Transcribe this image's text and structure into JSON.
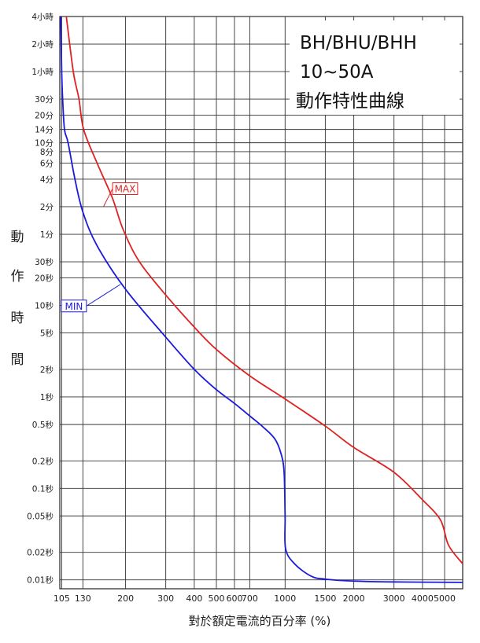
{
  "chart_data": {
    "type": "line",
    "title_lines": [
      "BH/BHU/BHH",
      "10~50A",
      "動作特性曲線"
    ],
    "xlabel": "對於額定電流的百分率 (%)",
    "ylabel_chars": [
      "動",
      "作",
      "時",
      "間"
    ],
    "x_scale": "log",
    "y_scale": "log",
    "xlim": [
      103,
      6000
    ],
    "ylim": [
      0.008,
      14400
    ],
    "grid": true,
    "x_ticks": [
      {
        "value": 105,
        "label": "105"
      },
      {
        "value": 130,
        "label": "130"
      },
      {
        "value": 200,
        "label": "200"
      },
      {
        "value": 300,
        "label": "300"
      },
      {
        "value": 400,
        "label": "400"
      },
      {
        "value": 500,
        "label": "500"
      },
      {
        "value": 600,
        "label": "600"
      },
      {
        "value": 700,
        "label": "700"
      },
      {
        "value": 1000,
        "label": "1000"
      },
      {
        "value": 1500,
        "label": "1500"
      },
      {
        "value": 2000,
        "label": "2000"
      },
      {
        "value": 3000,
        "label": "3000"
      },
      {
        "value": 4000,
        "label": "4000"
      },
      {
        "value": 5000,
        "label": "5000"
      }
    ],
    "y_ticks": [
      {
        "value": 14400,
        "label": "4小時"
      },
      {
        "value": 7200,
        "label": "2小時"
      },
      {
        "value": 3600,
        "label": "1小時"
      },
      {
        "value": 1800,
        "label": "30分"
      },
      {
        "value": 1200,
        "label": "20分"
      },
      {
        "value": 840,
        "label": "14分"
      },
      {
        "value": 600,
        "label": "10分"
      },
      {
        "value": 480,
        "label": "8分"
      },
      {
        "value": 360,
        "label": "6分"
      },
      {
        "value": 240,
        "label": "4分"
      },
      {
        "value": 120,
        "label": "2分"
      },
      {
        "value": 60,
        "label": "1分"
      },
      {
        "value": 30,
        "label": "30秒"
      },
      {
        "value": 20,
        "label": "20秒"
      },
      {
        "value": 10,
        "label": "10秒"
      },
      {
        "value": 5,
        "label": "5秒"
      },
      {
        "value": 2,
        "label": "2秒"
      },
      {
        "value": 1,
        "label": "1秒"
      },
      {
        "value": 0.5,
        "label": "0.5秒"
      },
      {
        "value": 0.2,
        "label": "0.2秒"
      },
      {
        "value": 0.1,
        "label": "0.1秒"
      },
      {
        "value": 0.05,
        "label": "0.05秒"
      },
      {
        "value": 0.02,
        "label": "0.02秒"
      },
      {
        "value": 0.01,
        "label": "0.01秒"
      }
    ],
    "series": [
      {
        "name": "MAX",
        "color": "#dd2222",
        "points": [
          [
            110,
            14400
          ],
          [
            118,
            3600
          ],
          [
            125,
            1800
          ],
          [
            131,
            840
          ],
          [
            150,
            360
          ],
          [
            175,
            150
          ],
          [
            195,
            68
          ],
          [
            230,
            30
          ],
          [
            300,
            13
          ],
          [
            400,
            5.8
          ],
          [
            500,
            3.3
          ],
          [
            700,
            1.7
          ],
          [
            1000,
            0.95
          ],
          [
            1500,
            0.48
          ],
          [
            2000,
            0.28
          ],
          [
            3000,
            0.15
          ],
          [
            4000,
            0.075
          ],
          [
            4800,
            0.045
          ],
          [
            5200,
            0.024
          ],
          [
            6000,
            0.015
          ]
        ]
      },
      {
        "name": "MIN",
        "color": "#1a1add",
        "points": [
          [
            104,
            14400
          ],
          [
            105,
            3600
          ],
          [
            106,
            1800
          ],
          [
            108,
            840
          ],
          [
            112,
            600
          ],
          [
            120,
            240
          ],
          [
            130,
            105
          ],
          [
            150,
            45
          ],
          [
            200,
            15
          ],
          [
            300,
            4.5
          ],
          [
            400,
            2.0
          ],
          [
            500,
            1.2
          ],
          [
            600,
            0.85
          ],
          [
            700,
            0.62
          ],
          [
            800,
            0.47
          ],
          [
            900,
            0.35
          ],
          [
            960,
            0.24
          ],
          [
            990,
            0.15
          ],
          [
            1000,
            0.05
          ],
          [
            1005,
            0.022
          ],
          [
            1100,
            0.015
          ],
          [
            1300,
            0.011
          ],
          [
            1500,
            0.0102
          ],
          [
            2000,
            0.0097
          ],
          [
            3000,
            0.0095
          ],
          [
            6000,
            0.0094
          ]
        ]
      }
    ],
    "labels": [
      {
        "series": "MAX",
        "text": "MAX",
        "x": 145,
        "y": 180,
        "color": "#dd2222"
      },
      {
        "series": "MIN",
        "text": "MIN",
        "x": 135,
        "y": 11,
        "color": "#1a1add"
      }
    ]
  }
}
